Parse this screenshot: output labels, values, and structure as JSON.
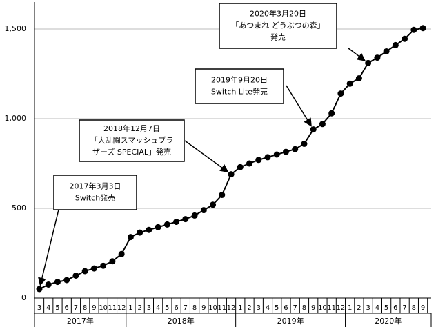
{
  "chart_data": {
    "type": "line",
    "categories": [
      "3",
      "4",
      "5",
      "6",
      "7",
      "8",
      "9",
      "10",
      "11",
      "12",
      "1",
      "2",
      "3",
      "4",
      "5",
      "6",
      "7",
      "8",
      "9",
      "10",
      "11",
      "12",
      "1",
      "2",
      "3",
      "4",
      "5",
      "6",
      "7",
      "8",
      "9",
      "10",
      "11",
      "12",
      "1",
      "2",
      "3",
      "4",
      "5",
      "6",
      "7",
      "8",
      "9"
    ],
    "x_groups": [
      "2017年",
      "2018年",
      "2019年",
      "2020年"
    ],
    "series": [
      {
        "color": "#000000",
        "values": [
          50,
          75,
          90,
          100,
          125,
          150,
          165,
          180,
          205,
          245,
          340,
          365,
          380,
          395,
          410,
          425,
          440,
          460,
          490,
          520,
          575,
          690,
          730,
          750,
          770,
          785,
          800,
          815,
          830,
          860,
          940,
          970,
          1030,
          1140,
          1195,
          1225,
          1310,
          1340,
          1375,
          1410,
          1445,
          1495,
          1505
        ]
      }
    ],
    "ylim": [
      0,
      1650
    ],
    "yticks": [
      0,
      500,
      {
        "value": 1000,
        "label": "1,000"
      },
      {
        "value": 1500,
        "label": "1,500"
      }
    ],
    "grid": true,
    "annotations": [
      {
        "lines": [
          "2017年3月3日",
          "Switch発売"
        ],
        "index": 0
      },
      {
        "lines": [
          "2018年12月7日",
          "「大乱闘スマッシュブラ",
          "ザーズ SPECIAL」発売"
        ],
        "index": 21
      },
      {
        "lines": [
          "2019年9月20日",
          "Switch Lite発売"
        ],
        "index": 30
      },
      {
        "lines": [
          "2020年3月20日",
          "「あつまれ どうぶつの森」",
          "発売"
        ],
        "index": 36
      }
    ]
  }
}
